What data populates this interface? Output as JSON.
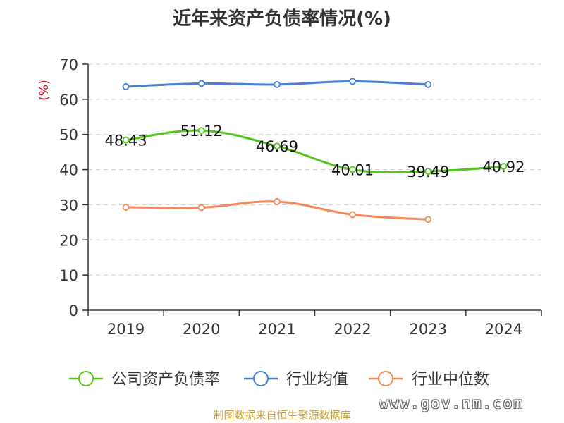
{
  "title": "近年来资产负债率情况(%)",
  "unit_label": "(%)",
  "source": "制图数据来自恒生聚源数据库",
  "watermark": "www.gov.nm.com",
  "colors": {
    "company": "#52c41a",
    "industry_avg": "#4a7fd6",
    "industry_median": "#f5895a",
    "unit": "#d9001b",
    "axis": "#333333",
    "grid": "#cccccc"
  },
  "chart_data": {
    "type": "line",
    "title": "近年来资产负债率情况(%)",
    "ylabel": "(%)",
    "xlabel": "",
    "categories": [
      "2019",
      "2020",
      "2021",
      "2022",
      "2023",
      "2024"
    ],
    "ylim": [
      0,
      70
    ],
    "yticks": [
      0,
      10,
      20,
      30,
      40,
      50,
      60,
      70
    ],
    "grid": true,
    "legend": "bottom",
    "series": [
      {
        "name": "公司资产负债率",
        "values": [
          48.43,
          51.12,
          46.69,
          40.01,
          39.49,
          40.92
        ],
        "labels": [
          "48.43",
          "51.12",
          "46.69",
          "40.01",
          "39.49",
          "40.92"
        ]
      },
      {
        "name": "行业均值",
        "values": [
          63.6,
          64.5,
          64.2,
          65.1,
          64.2,
          null
        ]
      },
      {
        "name": "行业中位数",
        "values": [
          29.3,
          29.2,
          30.9,
          27.2,
          25.8,
          null
        ]
      }
    ]
  }
}
